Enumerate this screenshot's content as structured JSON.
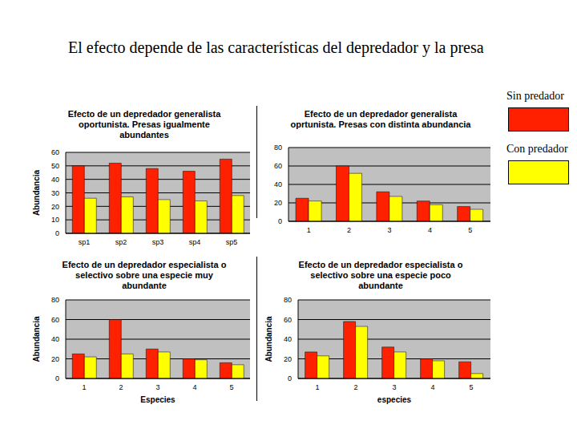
{
  "slide_title": "El efecto depende de las características del depredador y la presa",
  "chart_data": [
    {
      "type": "bar",
      "title": "Efecto de un depredador generalista oportunista. Presas igualmente abundantes",
      "y_label": "Abundancia",
      "categories": [
        "sp1",
        "sp2",
        "sp3",
        "sp4",
        "sp5"
      ],
      "series": [
        {
          "name": "Sin predador",
          "color": "#ff2000",
          "values": [
            50,
            52,
            48,
            46,
            55
          ]
        },
        {
          "name": "Con predador",
          "color": "#ffff00",
          "values": [
            26,
            27,
            25,
            24,
            28
          ]
        }
      ],
      "ylim": [
        0,
        60
      ],
      "yticks": [
        0,
        10,
        20,
        30,
        40,
        50,
        60
      ],
      "grid": true
    },
    {
      "type": "bar",
      "title": "Efecto de un depredador generalista oprtunista. Presas con distinta abundancia",
      "categories": [
        "1",
        "2",
        "3",
        "4",
        "5"
      ],
      "series": [
        {
          "name": "Sin predador",
          "color": "#ff2000",
          "values": [
            25,
            60,
            32,
            22,
            16
          ]
        },
        {
          "name": "Con predador",
          "color": "#ffff00",
          "values": [
            22,
            52,
            27,
            18,
            13
          ]
        }
      ],
      "ylim": [
        0,
        80
      ],
      "yticks": [
        0,
        20,
        40,
        60,
        80
      ],
      "grid": true
    },
    {
      "type": "bar",
      "title": "Efecto de un depredador especialista o selectivo sobre una especie muy abundante",
      "y_label": "Abundancia",
      "x_label": "Especies",
      "categories": [
        "1",
        "2",
        "3",
        "4",
        "5"
      ],
      "series": [
        {
          "name": "Sin predador",
          "color": "#ff2000",
          "values": [
            25,
            60,
            30,
            20,
            16
          ]
        },
        {
          "name": "Con predador",
          "color": "#ffff00",
          "values": [
            22,
            25,
            27,
            19,
            14
          ]
        }
      ],
      "ylim": [
        0,
        80
      ],
      "yticks": [
        0,
        20,
        40,
        60,
        80
      ],
      "grid": true
    },
    {
      "type": "bar",
      "title": "Efecto de un depredador especialista o selectivo sobre una especie poco abundante",
      "y_label": "Abundancia",
      "x_label": "especies",
      "categories": [
        "1",
        "2",
        "3",
        "4",
        "5"
      ],
      "series": [
        {
          "name": "Sin predador",
          "color": "#ff2000",
          "values": [
            27,
            58,
            32,
            20,
            17
          ]
        },
        {
          "name": "Con predador",
          "color": "#ffff00",
          "values": [
            23,
            53,
            27,
            18,
            5
          ]
        }
      ],
      "ylim": [
        0,
        80
      ],
      "yticks": [
        0,
        20,
        40,
        60,
        80
      ],
      "grid": true
    }
  ]
}
